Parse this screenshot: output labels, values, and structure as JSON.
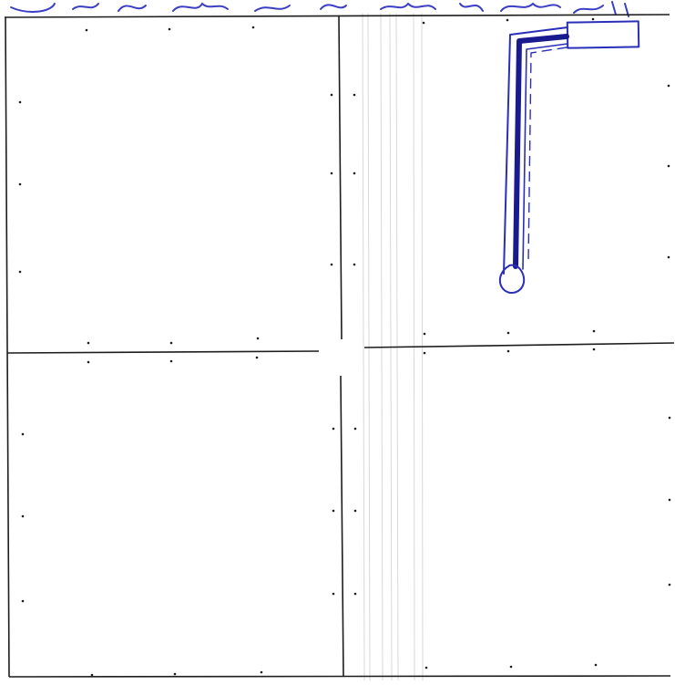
{
  "handwritten_heading": "",
  "ink_color": "#2a2fb8",
  "dark_ink_color": "#1a1a8f",
  "pencil_color": "#1d1d1d",
  "grid": {
    "rows": 2,
    "cols": 2,
    "dots_per_edge": 3
  },
  "drawing": {
    "shape": "elbow pipe sketch with rectangular end and round end"
  }
}
